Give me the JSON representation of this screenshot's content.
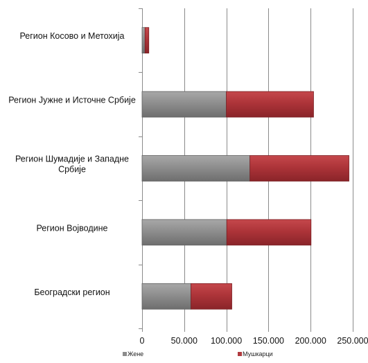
{
  "chart_data": {
    "type": "bar",
    "orientation": "horizontal",
    "stacked": true,
    "categories": [
      "Регион Косово и Метохија",
      "Регион Јужне и Источне Србије",
      "Регион Шумадије и Западне Србије",
      "Регион Војводине",
      "Београдски регион"
    ],
    "series": [
      {
        "name": "Жене",
        "values": [
          3500,
          100000,
          128000,
          100500,
          58000
        ],
        "color": "#8c8c8c"
      },
      {
        "name": "Мушкарци",
        "values": [
          4500,
          103500,
          117500,
          100000,
          48500
        ],
        "color": "#b03a3e"
      }
    ],
    "xlim": [
      0,
      250000
    ],
    "xticks": [
      0,
      50000,
      100000,
      150000,
      200000,
      250000
    ],
    "xtick_labels": [
      "0",
      "50.000",
      "100.000",
      "150.000",
      "200.000",
      "250.000"
    ],
    "grid": true,
    "legend_position": "bottom"
  }
}
